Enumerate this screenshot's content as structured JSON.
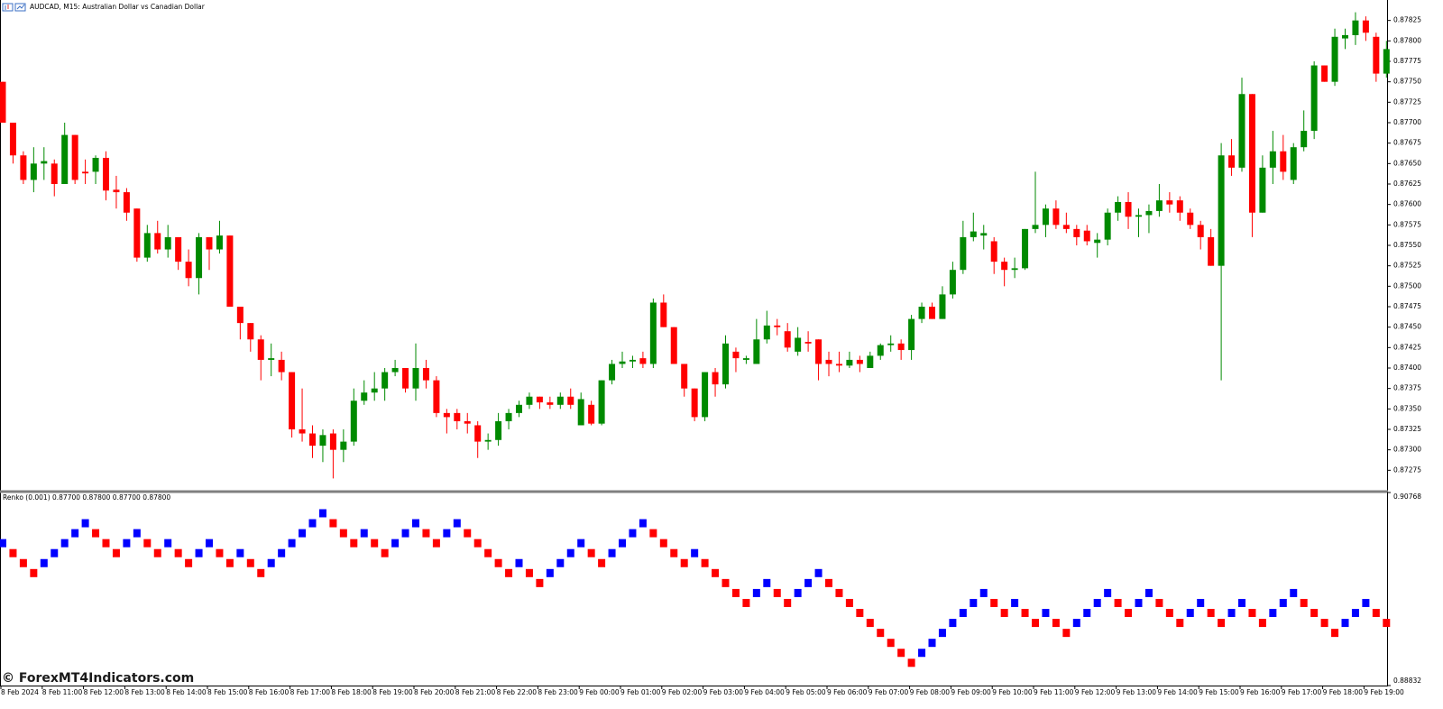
{
  "chart_data": [
    {
      "type": "candlestick",
      "title": "AUDCAD, M15:  Australian Dollar vs Canadian Dollar",
      "up_color": "#008a00",
      "down_color": "#ff0000",
      "ylim": [
        0.8725,
        0.8785
      ],
      "yticks": [
        0.87825,
        {
          "value": 0.878,
          "label": "0.87800"
        },
        0.87775,
        {
          "value": 0.8775,
          "label": "0.87750"
        },
        0.87725,
        {
          "value": 0.877,
          "label": "0.87700"
        },
        0.87675,
        {
          "value": 0.8765,
          "label": "0.87650"
        },
        0.87625,
        {
          "value": 0.876,
          "label": "0.87600"
        },
        0.87575,
        {
          "value": 0.8755,
          "label": "0.87550"
        },
        0.87525,
        {
          "value": 0.875,
          "label": "0.87500"
        },
        0.87475,
        {
          "value": 0.8745,
          "label": "0.87450"
        },
        0.87425,
        {
          "value": 0.874,
          "label": "0.87400"
        },
        0.87375,
        {
          "value": 0.8735,
          "label": "0.87350"
        },
        0.87325,
        {
          "value": 0.873,
          "label": "0.87300"
        },
        0.87275
      ],
      "open": [
        0.8775,
        0.877,
        0.8766,
        0.8763,
        0.8765,
        0.8765,
        0.87625,
        0.87685,
        0.8764,
        0.8764,
        0.87657,
        0.87618,
        0.87615,
        0.87595,
        0.87535,
        0.87565,
        0.87545,
        0.8756,
        0.8753,
        0.8751,
        0.8756,
        0.87545,
        0.87562,
        0.87475,
        0.87455,
        0.87435,
        0.8741,
        0.8741,
        0.87395,
        0.87325,
        0.8732,
        0.87305,
        0.8732,
        0.873,
        0.8731,
        0.8736,
        0.8737,
        0.87375,
        0.87395,
        0.874,
        0.87375,
        0.874,
        0.87385,
        0.87345,
        0.87345,
        0.87335,
        0.8733,
        0.8731,
        0.87312,
        0.87335,
        0.87345,
        0.87355,
        0.87365,
        0.87358,
        0.87355,
        0.87365,
        0.8733,
        0.87355,
        0.87332,
        0.87385,
        0.87405,
        0.87408,
        0.87412,
        0.87405,
        0.8748,
        0.8745,
        0.87405,
        0.87375,
        0.8734,
        0.87395,
        0.8738,
        0.8742,
        0.8741,
        0.87405,
        0.87435,
        0.87452,
        0.87445,
        0.8742,
        0.87432,
        0.87435,
        0.8741,
        0.87405,
        0.87403,
        0.8741,
        0.874,
        0.87415,
        0.87428,
        0.8743,
        0.87422,
        0.8746,
        0.87475,
        0.8746,
        0.8749,
        0.8752,
        0.8756,
        0.87562,
        0.87555,
        0.8753,
        0.8752,
        0.87522,
        0.8757,
        0.87575,
        0.87595,
        0.87575,
        0.8757,
        0.87568,
        0.87553,
        0.87557,
        0.8759,
        0.87603,
        0.87585,
        0.87587,
        0.87592,
        0.87605,
        0.87605,
        0.8759,
        0.87575,
        0.8756,
        0.87525,
        0.8766,
        0.87645,
        0.87735,
        0.8759,
        0.87645,
        0.87665,
        0.8763,
        0.8767,
        0.8769,
        0.8777,
        0.8775,
        0.87803,
        0.87807,
        0.87825,
        0.87805,
        0.8776
      ],
      "high": [
        0.8775,
        0.877,
        0.87665,
        0.8767,
        0.8767,
        0.87655,
        0.877,
        0.87685,
        0.87655,
        0.8766,
        0.87665,
        0.87635,
        0.8762,
        0.87595,
        0.87575,
        0.8758,
        0.87575,
        0.8756,
        0.87545,
        0.87565,
        0.8756,
        0.8758,
        0.87562,
        0.87475,
        0.87455,
        0.8744,
        0.8743,
        0.8742,
        0.87395,
        0.87375,
        0.8733,
        0.87325,
        0.87325,
        0.87325,
        0.87375,
        0.87385,
        0.87395,
        0.874,
        0.8741,
        0.874,
        0.8743,
        0.8741,
        0.8739,
        0.8735,
        0.8735,
        0.87345,
        0.87335,
        0.8732,
        0.87345,
        0.8735,
        0.8736,
        0.8737,
        0.87365,
        0.87365,
        0.8737,
        0.87375,
        0.8737,
        0.8736,
        0.87385,
        0.8741,
        0.8742,
        0.87415,
        0.8742,
        0.87485,
        0.8749,
        0.8745,
        0.87405,
        0.87375,
        0.87395,
        0.874,
        0.8744,
        0.87425,
        0.87415,
        0.8746,
        0.8747,
        0.8746,
        0.87455,
        0.8745,
        0.87445,
        0.87435,
        0.8742,
        0.8742,
        0.8742,
        0.87415,
        0.8742,
        0.8743,
        0.8744,
        0.87435,
        0.87465,
        0.8748,
        0.8748,
        0.875,
        0.8753,
        0.8758,
        0.8759,
        0.87575,
        0.8756,
        0.87535,
        0.87535,
        0.8757,
        0.8764,
        0.876,
        0.87605,
        0.8759,
        0.87575,
        0.87575,
        0.87565,
        0.87595,
        0.8761,
        0.87615,
        0.87595,
        0.876,
        0.87625,
        0.87615,
        0.8761,
        0.87595,
        0.8758,
        0.8757,
        0.87675,
        0.8768,
        0.87755,
        0.87735,
        0.8766,
        0.8769,
        0.87685,
        0.87675,
        0.87715,
        0.87775,
        0.8777,
        0.87815,
        0.87815,
        0.87835,
        0.8783,
        0.8781,
        0.878
      ],
      "low": [
        0.877,
        0.8765,
        0.87625,
        0.87615,
        0.8763,
        0.8761,
        0.87625,
        0.87625,
        0.87625,
        0.87625,
        0.87605,
        0.87595,
        0.8758,
        0.8753,
        0.8753,
        0.8754,
        0.87535,
        0.8752,
        0.875,
        0.8749,
        0.8752,
        0.8754,
        0.87475,
        0.87435,
        0.8742,
        0.87385,
        0.8739,
        0.87385,
        0.87315,
        0.8731,
        0.8729,
        0.87285,
        0.87265,
        0.87285,
        0.87305,
        0.87355,
        0.8736,
        0.8736,
        0.8739,
        0.8737,
        0.8736,
        0.87375,
        0.8734,
        0.8732,
        0.87325,
        0.8732,
        0.8729,
        0.873,
        0.87305,
        0.87325,
        0.8734,
        0.8735,
        0.8735,
        0.8735,
        0.8735,
        0.8735,
        0.8733,
        0.8733,
        0.8733,
        0.8738,
        0.874,
        0.874,
        0.874,
        0.874,
        0.8745,
        0.87405,
        0.87365,
        0.87335,
        0.87335,
        0.87365,
        0.87375,
        0.87395,
        0.87405,
        0.87405,
        0.8743,
        0.8744,
        0.8742,
        0.87415,
        0.8742,
        0.87385,
        0.8739,
        0.87395,
        0.874,
        0.87395,
        0.874,
        0.8741,
        0.8742,
        0.8741,
        0.8741,
        0.87455,
        0.8746,
        0.8746,
        0.87485,
        0.87515,
        0.87555,
        0.87545,
        0.87515,
        0.875,
        0.8751,
        0.8752,
        0.87565,
        0.8756,
        0.8757,
        0.87565,
        0.8755,
        0.8755,
        0.87535,
        0.8755,
        0.8758,
        0.8757,
        0.8756,
        0.87565,
        0.87585,
        0.8759,
        0.8758,
        0.8757,
        0.87545,
        0.87525,
        0.87385,
        0.87635,
        0.8764,
        0.8756,
        0.8759,
        0.87625,
        0.8763,
        0.87625,
        0.87665,
        0.8768,
        0.8775,
        0.87745,
        0.8779,
        0.87795,
        0.878,
        0.8775,
        0.87755
      ],
      "close": [
        0.877,
        0.8766,
        0.8763,
        0.8765,
        0.87653,
        0.87625,
        0.87685,
        0.8763,
        0.87638,
        0.87657,
        0.87617,
        0.87615,
        0.8759,
        0.87535,
        0.87565,
        0.87545,
        0.8756,
        0.8753,
        0.8751,
        0.8756,
        0.87545,
        0.87562,
        0.87475,
        0.87455,
        0.87435,
        0.8741,
        0.87412,
        0.87395,
        0.87325,
        0.8732,
        0.87305,
        0.87318,
        0.873,
        0.8731,
        0.8736,
        0.8737,
        0.87375,
        0.87395,
        0.874,
        0.87375,
        0.874,
        0.87385,
        0.87345,
        0.8734,
        0.87335,
        0.87332,
        0.8731,
        0.87312,
        0.87335,
        0.87345,
        0.87355,
        0.87365,
        0.87358,
        0.87355,
        0.87365,
        0.87355,
        0.87362,
        0.87332,
        0.87385,
        0.87405,
        0.87408,
        0.8741,
        0.87405,
        0.8748,
        0.8745,
        0.87405,
        0.87375,
        0.8734,
        0.87395,
        0.8738,
        0.8743,
        0.87412,
        0.87412,
        0.87435,
        0.87452,
        0.8745,
        0.87425,
        0.87437,
        0.8743,
        0.87405,
        0.87405,
        0.87403,
        0.8741,
        0.87405,
        0.87415,
        0.87428,
        0.8743,
        0.87422,
        0.8746,
        0.87475,
        0.8746,
        0.8749,
        0.8752,
        0.8756,
        0.87567,
        0.87565,
        0.8753,
        0.8752,
        0.87522,
        0.8757,
        0.87575,
        0.87595,
        0.87575,
        0.8757,
        0.8756,
        0.87555,
        0.87557,
        0.8759,
        0.87603,
        0.87585,
        0.87587,
        0.87592,
        0.87605,
        0.876,
        0.8759,
        0.87575,
        0.8756,
        0.87525,
        0.8766,
        0.87645,
        0.87735,
        0.8759,
        0.87645,
        0.87665,
        0.8764,
        0.8767,
        0.8769,
        0.8777,
        0.8775,
        0.87805,
        0.87807,
        0.87825,
        0.8781,
        0.8776,
        0.8779
      ]
    },
    {
      "type": "renko",
      "title": "Renko (0.001) 0.87700 0.87800 0.87700 0.87800",
      "up_color": "#0000ff",
      "down_color": "#ff0000",
      "ylim": [
        0.88832,
        0.90768
      ],
      "yticks": [
        0.90768,
        0.88832
      ],
      "values": [
        0.9026,
        0.9016,
        0.9006,
        0.8996,
        0.9006,
        0.9016,
        0.9026,
        0.9036,
        0.9046,
        0.9036,
        0.9026,
        0.9016,
        0.9026,
        0.9036,
        0.9026,
        0.9016,
        0.9026,
        0.9016,
        0.9006,
        0.9016,
        0.9026,
        0.9016,
        0.9006,
        0.9016,
        0.9006,
        0.8996,
        0.9006,
        0.9016,
        0.9026,
        0.9036,
        0.9046,
        0.9056,
        0.9046,
        0.9036,
        0.9026,
        0.9036,
        0.9026,
        0.9016,
        0.9026,
        0.9036,
        0.9046,
        0.9036,
        0.9026,
        0.9036,
        0.9046,
        0.9036,
        0.9026,
        0.9016,
        0.9006,
        0.8996,
        0.9006,
        0.8996,
        0.8986,
        0.8996,
        0.9006,
        0.9016,
        0.9026,
        0.9016,
        0.9006,
        0.9016,
        0.9026,
        0.9036,
        0.9046,
        0.9036,
        0.9026,
        0.9016,
        0.9006,
        0.9016,
        0.9006,
        0.8996,
        0.8986,
        0.8976,
        0.8966,
        0.8976,
        0.8986,
        0.8976,
        0.8966,
        0.8976,
        0.8986,
        0.8996,
        0.8986,
        0.8976,
        0.8966,
        0.8956,
        0.8946,
        0.8936,
        0.8926,
        0.8916,
        0.8906,
        0.8916,
        0.8926,
        0.8936,
        0.8946,
        0.8956,
        0.8966,
        0.8976,
        0.8966,
        0.8956,
        0.8966,
        0.8956,
        0.8946,
        0.8956,
        0.8946,
        0.8936,
        0.8946,
        0.8956,
        0.8966,
        0.8976,
        0.8966,
        0.8956,
        0.8966,
        0.8976,
        0.8966,
        0.8956,
        0.8946,
        0.8956,
        0.8966,
        0.8956,
        0.8946,
        0.8956,
        0.8966,
        0.8956,
        0.8946,
        0.8956,
        0.8966,
        0.8976,
        0.8966,
        0.8956,
        0.8946,
        0.8936,
        0.8946,
        0.8956,
        0.8966,
        0.8956,
        0.8946
      ],
      "xticks": [
        {
          "value": 0,
          "label": "8 Feb 2024"
        },
        {
          "value": 4,
          "label": "8 Feb 11:00"
        },
        {
          "value": 8,
          "label": "8 Feb 12:00"
        },
        {
          "value": 12,
          "label": "8 Feb 13:00"
        },
        {
          "value": 16,
          "label": "8 Feb 14:00"
        },
        {
          "value": 20,
          "label": "8 Feb 15:00"
        },
        {
          "value": 24,
          "label": "8 Feb 16:00"
        },
        {
          "value": 28,
          "label": "8 Feb 17:00"
        },
        {
          "value": 32,
          "label": "8 Feb 18:00"
        },
        {
          "value": 36,
          "label": "8 Feb 19:00"
        },
        {
          "value": 40,
          "label": "8 Feb 20:00"
        },
        {
          "value": 44,
          "label": "8 Feb 21:00"
        },
        {
          "value": 48,
          "label": "8 Feb 22:00"
        },
        {
          "value": 52,
          "label": "8 Feb 23:00"
        },
        {
          "value": 56,
          "label": "9 Feb 00:00"
        },
        {
          "value": 60,
          "label": "9 Feb 01:00"
        },
        {
          "value": 64,
          "label": "9 Feb 02:00"
        },
        {
          "value": 68,
          "label": "9 Feb 03:00"
        },
        {
          "value": 72,
          "label": "9 Feb 04:00"
        },
        {
          "value": 76,
          "label": "9 Feb 05:00"
        },
        {
          "value": 80,
          "label": "9 Feb 06:00"
        },
        {
          "value": 84,
          "label": "9 Feb 07:00"
        },
        {
          "value": 88,
          "label": "9 Feb 08:00"
        },
        {
          "value": 92,
          "label": "9 Feb 09:00"
        },
        {
          "value": 96,
          "label": "9 Feb 10:00"
        },
        {
          "value": 100,
          "label": "9 Feb 11:00"
        },
        {
          "value": 104,
          "label": "9 Feb 12:00"
        },
        {
          "value": 108,
          "label": "9 Feb 13:00"
        },
        {
          "value": 112,
          "label": "9 Feb 14:00"
        },
        {
          "value": 116,
          "label": "9 Feb 15:00"
        },
        {
          "value": 120,
          "label": "9 Feb 16:00"
        },
        {
          "value": 124,
          "label": "9 Feb 17:00"
        },
        {
          "value": 128,
          "label": "9 Feb 18:00"
        },
        {
          "value": 132,
          "label": "9 Feb 19:00"
        }
      ]
    }
  ],
  "watermark": "© ForexMT4Indicators.com"
}
